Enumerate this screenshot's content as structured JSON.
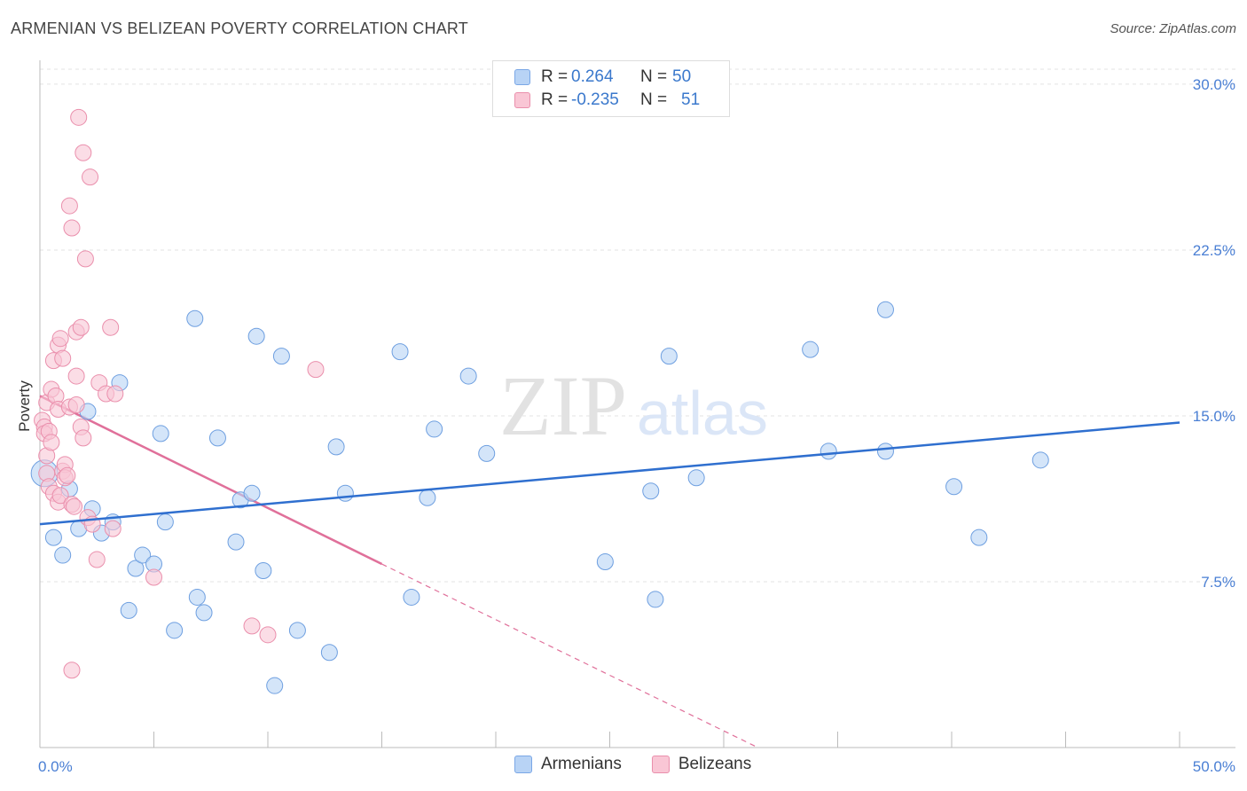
{
  "header": {
    "title": "ARMENIAN VS BELIZEAN POVERTY CORRELATION CHART",
    "source": "Source: ZipAtlas.com"
  },
  "watermark": {
    "zip": "ZIP",
    "atlas": "atlas"
  },
  "legend": {
    "rows": [
      {
        "r_label": "R =",
        "r_value": "0.264",
        "n_label": "N =",
        "n_value": "50"
      },
      {
        "r_label": "R =",
        "r_value": "-0.235",
        "n_label": "N =",
        "n_value": "51"
      }
    ],
    "bottom": [
      "Armenians",
      "Belizeans"
    ]
  },
  "colors": {
    "blue_fill": "#b8d3f5",
    "blue_stroke": "#6e9fe0",
    "blue_line": "#2f6fcf",
    "pink_fill": "#f9c6d5",
    "pink_stroke": "#ea8fac",
    "pink_line": "#e0709a",
    "grid": "#e3e3e3",
    "tick": "#4a7fd4"
  },
  "chart_data": {
    "type": "scatter",
    "title": "ARMENIAN VS BELIZEAN POVERTY CORRELATION CHART",
    "xlabel": "",
    "ylabel": "Poverty",
    "xlim": [
      0,
      50
    ],
    "ylim": [
      0,
      31
    ],
    "x_tick_labels": [
      "0.0%",
      "50.0%"
    ],
    "y_ticks": [
      7.5,
      15.0,
      22.5,
      30.0
    ],
    "y_tick_labels": [
      "7.5%",
      "15.0%",
      "22.5%",
      "30.0%"
    ],
    "series": [
      {
        "name": "Armenians",
        "r": 0.264,
        "n": 50,
        "trend": {
          "x": [
            0,
            50
          ],
          "y": [
            10.1,
            14.7
          ],
          "dashed_to": null
        },
        "points": [
          [
            0.2,
            12.4
          ],
          [
            0.6,
            9.5
          ],
          [
            1.0,
            8.7
          ],
          [
            1.3,
            11.7
          ],
          [
            1.7,
            9.9
          ],
          [
            2.1,
            15.2
          ],
          [
            2.3,
            10.8
          ],
          [
            2.7,
            9.7
          ],
          [
            3.2,
            10.2
          ],
          [
            3.5,
            16.5
          ],
          [
            3.9,
            6.2
          ],
          [
            4.2,
            8.1
          ],
          [
            4.5,
            8.7
          ],
          [
            5.0,
            8.3
          ],
          [
            5.3,
            14.2
          ],
          [
            5.5,
            10.2
          ],
          [
            5.9,
            5.3
          ],
          [
            6.8,
            19.4
          ],
          [
            6.9,
            6.8
          ],
          [
            7.2,
            6.1
          ],
          [
            7.8,
            14.0
          ],
          [
            8.6,
            9.3
          ],
          [
            8.8,
            11.2
          ],
          [
            9.3,
            11.5
          ],
          [
            9.5,
            18.6
          ],
          [
            9.8,
            8.0
          ],
          [
            10.3,
            2.8
          ],
          [
            10.6,
            17.7
          ],
          [
            11.3,
            5.3
          ],
          [
            12.7,
            4.3
          ],
          [
            13.0,
            13.6
          ],
          [
            13.4,
            11.5
          ],
          [
            15.8,
            17.9
          ],
          [
            16.3,
            6.8
          ],
          [
            17.0,
            11.3
          ],
          [
            17.3,
            14.4
          ],
          [
            18.8,
            16.8
          ],
          [
            19.6,
            13.3
          ],
          [
            24.8,
            8.4
          ],
          [
            26.8,
            11.6
          ],
          [
            27.0,
            6.7
          ],
          [
            27.6,
            17.7
          ],
          [
            28.8,
            12.2
          ],
          [
            33.8,
            18.0
          ],
          [
            34.6,
            13.4
          ],
          [
            37.1,
            13.4
          ],
          [
            37.1,
            19.8
          ],
          [
            40.1,
            11.8
          ],
          [
            41.2,
            9.5
          ],
          [
            43.9,
            13.0
          ]
        ]
      },
      {
        "name": "Belizeans",
        "r": -0.235,
        "n": 51,
        "trend": {
          "x": [
            0,
            15
          ],
          "y": [
            15.9,
            8.3
          ],
          "dashed_to": [
            31.5,
            0
          ]
        },
        "points": [
          [
            0.1,
            14.8
          ],
          [
            0.2,
            14.5
          ],
          [
            0.2,
            14.2
          ],
          [
            0.3,
            15.6
          ],
          [
            0.3,
            13.2
          ],
          [
            0.3,
            12.4
          ],
          [
            0.4,
            11.8
          ],
          [
            0.4,
            14.3
          ],
          [
            0.5,
            16.2
          ],
          [
            0.5,
            13.8
          ],
          [
            0.6,
            17.5
          ],
          [
            0.6,
            11.5
          ],
          [
            0.7,
            15.9
          ],
          [
            0.8,
            18.2
          ],
          [
            0.8,
            15.3
          ],
          [
            0.8,
            11.1
          ],
          [
            0.9,
            18.5
          ],
          [
            0.9,
            11.4
          ],
          [
            1.0,
            17.6
          ],
          [
            1.0,
            12.5
          ],
          [
            1.1,
            12.8
          ],
          [
            1.1,
            12.2
          ],
          [
            1.2,
            12.3
          ],
          [
            1.3,
            24.5
          ],
          [
            1.3,
            15.4
          ],
          [
            1.4,
            23.5
          ],
          [
            1.4,
            11.0
          ],
          [
            1.5,
            10.9
          ],
          [
            1.6,
            18.8
          ],
          [
            1.6,
            16.8
          ],
          [
            1.6,
            15.5
          ],
          [
            1.7,
            28.5
          ],
          [
            1.8,
            19.0
          ],
          [
            1.8,
            14.5
          ],
          [
            1.9,
            26.9
          ],
          [
            1.9,
            14.0
          ],
          [
            2.0,
            22.1
          ],
          [
            2.1,
            10.4
          ],
          [
            2.2,
            25.8
          ],
          [
            2.3,
            10.1
          ],
          [
            2.5,
            8.5
          ],
          [
            2.6,
            16.5
          ],
          [
            2.9,
            16.0
          ],
          [
            3.1,
            19.0
          ],
          [
            3.2,
            9.9
          ],
          [
            3.3,
            16.0
          ],
          [
            5.0,
            7.7
          ],
          [
            9.3,
            5.5
          ],
          [
            10.0,
            5.1
          ],
          [
            12.1,
            17.1
          ],
          [
            1.4,
            3.5
          ]
        ]
      }
    ]
  }
}
